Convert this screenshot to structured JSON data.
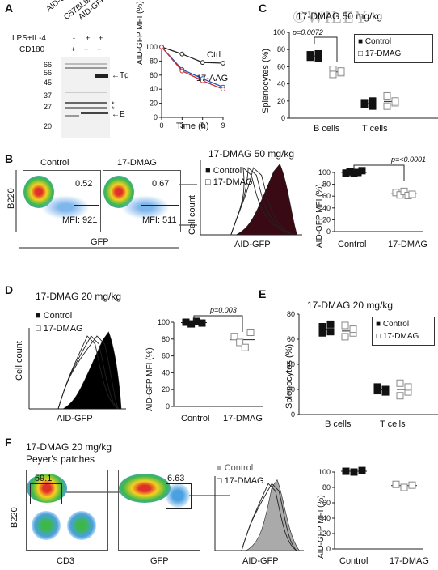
{
  "watermark": "©WILEY",
  "panelA": {
    "label": "A",
    "lanes": [
      "AID-GFPtg",
      "C57BL6/J",
      "AID-GFPtg"
    ],
    "treat1": "LPS+IL-4",
    "treat1_signs": [
      "-",
      "+",
      "+"
    ],
    "treat2": "CD180",
    "treat2_signs": [
      "+",
      "+",
      "+"
    ],
    "markers": [
      "66",
      "56",
      "45",
      "37",
      "27",
      "20"
    ],
    "band_tg": "Tg",
    "band_e": "E",
    "asterisk": "*",
    "chart": {
      "ylabel": "AID-GFP MFI (%)",
      "xlabel": "Time (h)",
      "xticks": [
        "0",
        "3",
        "6",
        "9"
      ],
      "yticks": [
        "0",
        "20",
        "40",
        "60",
        "80",
        "100"
      ],
      "series": [
        {
          "name": "Ctrl",
          "x": [
            0,
            3,
            6,
            9
          ],
          "values": [
            100,
            90,
            78,
            77
          ],
          "color": "#222"
        },
        {
          "name": "17-AAG",
          "x": [
            0,
            3,
            6,
            9
          ],
          "values": [
            100,
            68,
            55,
            43
          ],
          "color": "#2d4fb5"
        },
        {
          "name": "17-AAG",
          "x": [
            0,
            3,
            6,
            9
          ],
          "values": [
            100,
            66,
            52,
            40
          ],
          "color": "#c03030"
        }
      ]
    }
  },
  "panelB": {
    "label": "B",
    "facs_titles": [
      "Control",
      "17-DMAG"
    ],
    "gates": [
      "0.52",
      "0.67"
    ],
    "mfi": [
      "MFI: 921",
      "MFI: 511"
    ],
    "ylabel": "B220",
    "xlabel": "GFP",
    "hist_title": "17-DMAG 50 mg/kg",
    "hist_legend": [
      "Control",
      "17-DMAG"
    ],
    "hist_ylabel": "Cell count",
    "hist_xlabel": "AID-GFP",
    "scatter": {
      "ylabel": "AID-GFP MFI (%)",
      "yticks": [
        "0",
        "20",
        "40",
        "60",
        "80",
        "100"
      ],
      "categories": [
        "Control",
        "17-DMAG"
      ],
      "pvalue": "p=<0.0001",
      "control": [
        99,
        101,
        98,
        100,
        103
      ],
      "dmag": [
        66,
        62,
        68,
        61,
        63
      ]
    }
  },
  "panelC": {
    "label": "C",
    "title": "17-DMAG 50 mg/kg",
    "ylabel": "Splenocytes (%)",
    "yticks": [
      "0",
      "20",
      "40",
      "60",
      "80",
      "100"
    ],
    "categories": [
      "B cells",
      "T cells"
    ],
    "legend": [
      "Control",
      "17-DMAG"
    ],
    "pvalue": "p=0.0072",
    "control": {
      "B": [
        74,
        70,
        71,
        75
      ],
      "T": [
        18,
        14,
        16,
        20
      ]
    },
    "dmag": {
      "B": [
        57,
        53,
        51,
        55
      ],
      "T": [
        26,
        18,
        14,
        20
      ]
    }
  },
  "panelD": {
    "label": "D",
    "title": "17-DMAG 20 mg/kg",
    "hist_legend": [
      "Control",
      "17-DMAG"
    ],
    "hist_ylabel": "Cell count",
    "hist_xlabel": "AID-GFP",
    "scatter": {
      "ylabel": "AID-GFP MFI (%)",
      "yticks": [
        "0",
        "20",
        "40",
        "60",
        "80",
        "100"
      ],
      "categories": [
        "Control",
        "17-DMAG"
      ],
      "pvalue": "p=0.003",
      "control": [
        100,
        98,
        101,
        99
      ],
      "dmag": [
        83,
        76,
        70,
        88
      ]
    }
  },
  "panelE": {
    "label": "E",
    "title": "17-DMAG 20 mg/kg",
    "ylabel": "Splenocytes (%)",
    "yticks": [
      "0",
      "20",
      "40",
      "60",
      "80"
    ],
    "categories": [
      "B cells",
      "T cells"
    ],
    "legend": [
      "Control",
      "17-DMAG"
    ],
    "control": {
      "B": [
        70,
        66,
        65,
        72
      ],
      "T": [
        22,
        18,
        19,
        20
      ]
    },
    "dmag": {
      "B": [
        71,
        65,
        62,
        68
      ],
      "T": [
        25,
        18,
        15,
        22
      ]
    }
  },
  "panelF": {
    "label": "F",
    "title": "17-DMAG 20 mg/kg",
    "subtitle": "Peyer's patches",
    "gates": [
      "59.1",
      "6.63"
    ],
    "ylabel": "B220",
    "xlabels": [
      "CD3",
      "GFP"
    ],
    "hist_legend": [
      "Control",
      "17-DMAG"
    ],
    "hist_xlabel": "AID-GFP",
    "scatter": {
      "ylabel": "AID-GFP MFI (%)",
      "yticks": [
        "0",
        "20",
        "40",
        "60",
        "80",
        "100"
      ],
      "categories": [
        "Control",
        "17-DMAG"
      ],
      "control": [
        101,
        100,
        102
      ],
      "dmag": [
        84,
        80,
        83
      ]
    }
  }
}
